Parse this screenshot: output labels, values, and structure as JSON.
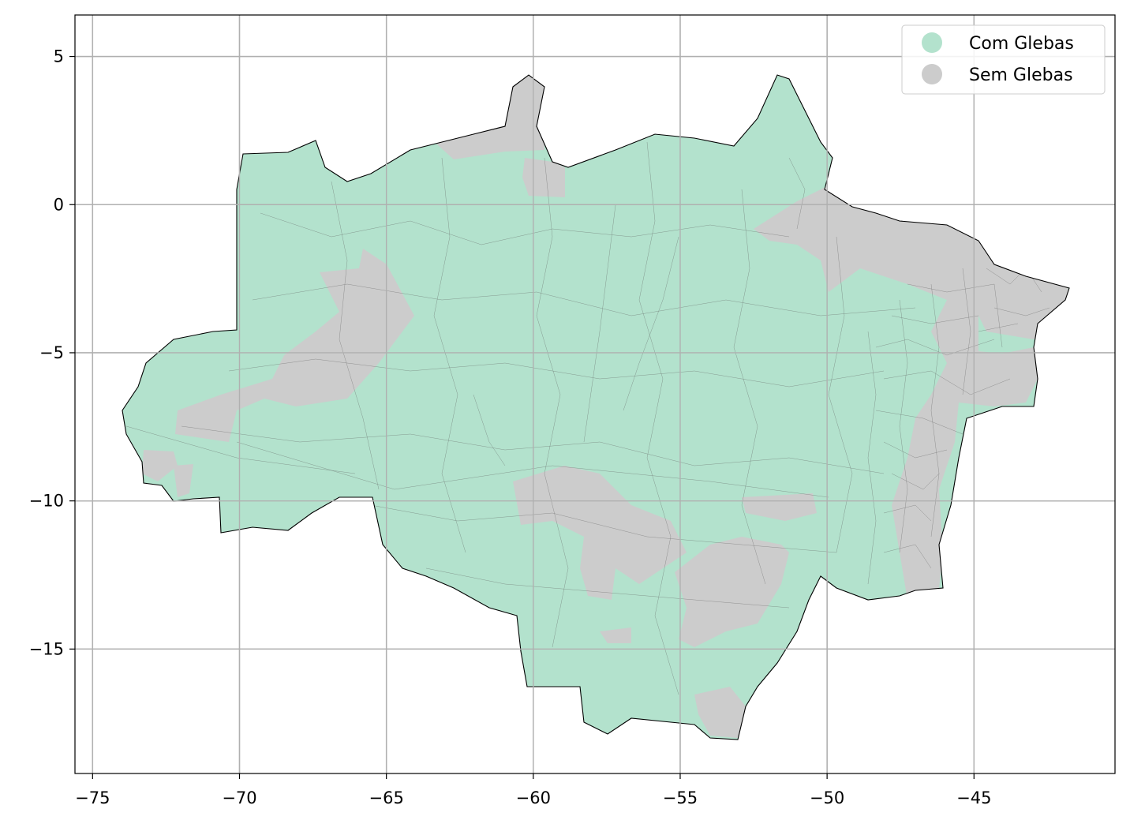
{
  "map": {
    "x_axis": {
      "min": -75.6,
      "max": -40.2,
      "ticks": [
        -75,
        -70,
        -65,
        -60,
        -55,
        -50,
        -45
      ]
    },
    "y_axis": {
      "min": -19.2,
      "max": 6.4,
      "ticks": [
        5,
        0,
        -5,
        -10,
        -15
      ]
    },
    "grid": true,
    "colors": {
      "com_glebas": "#b3e2cd",
      "sem_glebas": "#cccccc",
      "grid": "#b0b0b0",
      "outline": "#000000",
      "boundaries": "#5a5a5a"
    },
    "legend": {
      "placement": "top-right",
      "items": [
        {
          "key": "com_glebas",
          "label": "Com Glebas"
        },
        {
          "key": "sem_glebas",
          "label": "Sem Glebas"
        }
      ]
    }
  }
}
